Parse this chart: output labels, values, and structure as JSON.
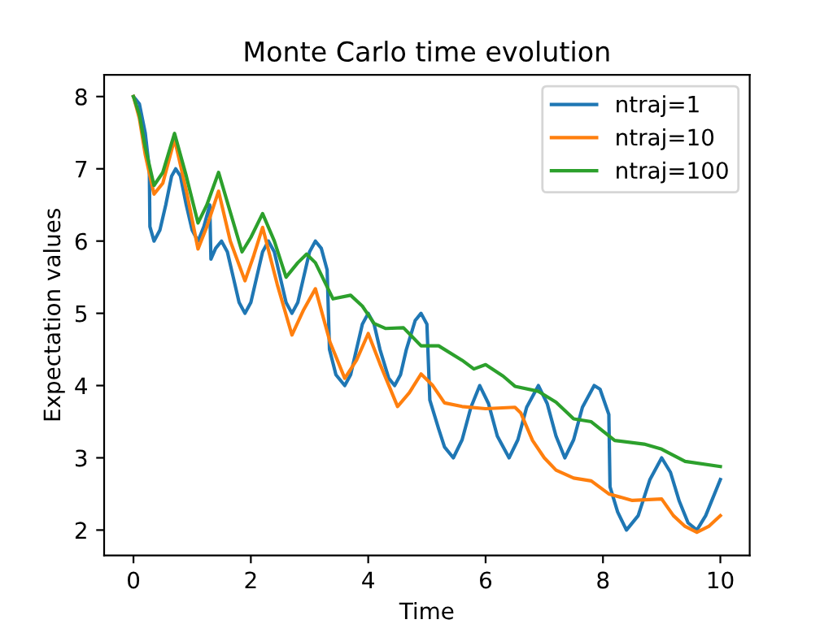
{
  "chart_data": {
    "type": "line",
    "title": "Monte Carlo time evolution",
    "xlabel": "Time",
    "ylabel": "Expectation values",
    "xlim": [
      -0.5,
      10.5
    ],
    "xticks": [
      0,
      2,
      4,
      6,
      8,
      10
    ],
    "ylim": [
      1.65,
      8.3
    ],
    "yticks": [
      2,
      3,
      4,
      5,
      6,
      7,
      8
    ],
    "grid": false,
    "legend": "top right",
    "marker": "none",
    "line_style": "solid",
    "series": [
      {
        "name": "ntraj=1",
        "color": "#1f77b4",
        "x": [
          0,
          0.1,
          0.2,
          0.27,
          0.28,
          0.35,
          0.45,
          0.55,
          0.65,
          0.72,
          0.8,
          0.9,
          1.0,
          1.1,
          1.2,
          1.3,
          1.32,
          1.4,
          1.5,
          1.6,
          1.7,
          1.8,
          1.9,
          2.0,
          2.1,
          2.2,
          2.3,
          2.4,
          2.5,
          2.6,
          2.7,
          2.8,
          2.9,
          3.0,
          3.1,
          3.2,
          3.3,
          3.34,
          3.45,
          3.6,
          3.7,
          3.8,
          3.9,
          4.0,
          4.1,
          4.2,
          4.35,
          4.45,
          4.55,
          4.65,
          4.8,
          4.9,
          5.0,
          5.05,
          5.2,
          5.3,
          5.45,
          5.6,
          5.75,
          5.9,
          6.05,
          6.2,
          6.4,
          6.55,
          6.7,
          6.9,
          7.05,
          7.2,
          7.35,
          7.5,
          7.65,
          7.85,
          7.95,
          8.1,
          8.12,
          8.25,
          8.4,
          8.6,
          8.8,
          9.0,
          9.15,
          9.3,
          9.45,
          9.6,
          9.75,
          10.0
        ],
        "values": [
          8.0,
          7.9,
          7.5,
          7.0,
          6.2,
          6.0,
          6.15,
          6.5,
          6.9,
          7.0,
          6.9,
          6.5,
          6.15,
          6.0,
          6.2,
          6.5,
          5.75,
          5.9,
          6.0,
          5.85,
          5.5,
          5.15,
          5.0,
          5.15,
          5.5,
          5.85,
          6.0,
          5.85,
          5.5,
          5.15,
          5.0,
          5.15,
          5.5,
          5.85,
          6.0,
          5.9,
          5.6,
          4.5,
          4.15,
          4.0,
          4.15,
          4.5,
          4.85,
          5.0,
          4.85,
          4.5,
          4.1,
          4.0,
          4.15,
          4.5,
          4.9,
          5.0,
          4.85,
          3.8,
          3.4,
          3.15,
          3.0,
          3.25,
          3.7,
          4.0,
          3.75,
          3.3,
          3.0,
          3.25,
          3.7,
          4.0,
          3.75,
          3.3,
          3.0,
          3.25,
          3.7,
          4.0,
          3.95,
          3.6,
          2.6,
          2.25,
          2.0,
          2.2,
          2.7,
          3.0,
          2.8,
          2.4,
          2.1,
          2.0,
          2.2,
          2.7
        ]
      },
      {
        "name": "ntraj=10",
        "color": "#ff7f0e",
        "x": [
          0,
          0.1,
          0.2,
          0.35,
          0.5,
          0.7,
          0.9,
          1.1,
          1.25,
          1.45,
          1.65,
          1.9,
          2.05,
          2.2,
          2.45,
          2.7,
          2.9,
          3.1,
          3.35,
          3.6,
          3.8,
          4.0,
          4.2,
          4.5,
          4.7,
          4.9,
          5.1,
          5.3,
          5.6,
          6.0,
          6.5,
          6.6,
          6.8,
          7.0,
          7.2,
          7.5,
          7.8,
          8.1,
          8.5,
          9.0,
          9.2,
          9.4,
          9.6,
          9.8,
          10.0
        ],
        "values": [
          8.0,
          7.7,
          7.2,
          6.65,
          6.8,
          7.41,
          6.7,
          5.89,
          6.2,
          6.69,
          6.0,
          5.45,
          5.8,
          6.19,
          5.4,
          4.7,
          5.05,
          5.34,
          4.6,
          4.1,
          4.35,
          4.72,
          4.3,
          3.71,
          3.9,
          4.16,
          4.0,
          3.76,
          3.71,
          3.68,
          3.7,
          3.62,
          3.24,
          3.0,
          2.83,
          2.72,
          2.68,
          2.5,
          2.41,
          2.43,
          2.2,
          2.05,
          1.97,
          2.05,
          2.2
        ]
      },
      {
        "name": "ntraj=100",
        "color": "#2ca02c",
        "x": [
          0,
          0.1,
          0.2,
          0.35,
          0.5,
          0.7,
          0.9,
          1.1,
          1.25,
          1.45,
          1.65,
          1.85,
          2.0,
          2.2,
          2.4,
          2.6,
          2.8,
          2.95,
          3.1,
          3.4,
          3.7,
          3.9,
          4.1,
          4.3,
          4.6,
          4.9,
          5.2,
          5.6,
          5.8,
          6.0,
          6.3,
          6.5,
          6.9,
          7.2,
          7.5,
          7.8,
          8.2,
          8.7,
          9.0,
          9.4,
          10.0
        ],
        "values": [
          8.0,
          7.75,
          7.3,
          6.77,
          6.95,
          7.49,
          6.9,
          6.25,
          6.5,
          6.95,
          6.4,
          5.85,
          6.05,
          6.38,
          6.0,
          5.5,
          5.7,
          5.82,
          5.7,
          5.2,
          5.25,
          5.1,
          4.86,
          4.79,
          4.8,
          4.55,
          4.55,
          4.35,
          4.23,
          4.29,
          4.13,
          3.99,
          3.92,
          3.77,
          3.54,
          3.5,
          3.24,
          3.19,
          3.12,
          2.95,
          2.88
        ]
      }
    ]
  }
}
